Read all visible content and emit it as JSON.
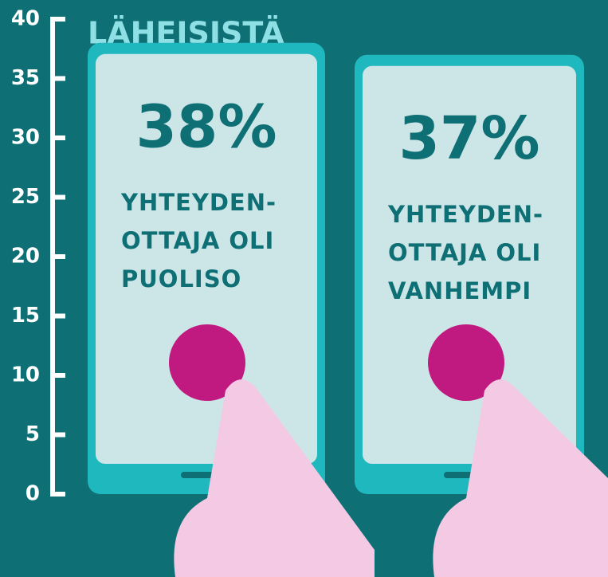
{
  "chart_data": {
    "type": "bar",
    "title": "LÄHEISISTÄ",
    "categories": [
      "YHTEYDEN-OTTAJA OLI PUOLISO",
      "YHTEYDEN-OTTAJA OLI VANHEMPI"
    ],
    "values": [
      38,
      37
    ],
    "value_labels": [
      "38%",
      "37%"
    ],
    "color": "#1fb8bf",
    "ylim": [
      0,
      40
    ],
    "yticks": [
      0,
      5,
      10,
      15,
      20,
      25,
      30,
      35,
      40
    ]
  }
}
